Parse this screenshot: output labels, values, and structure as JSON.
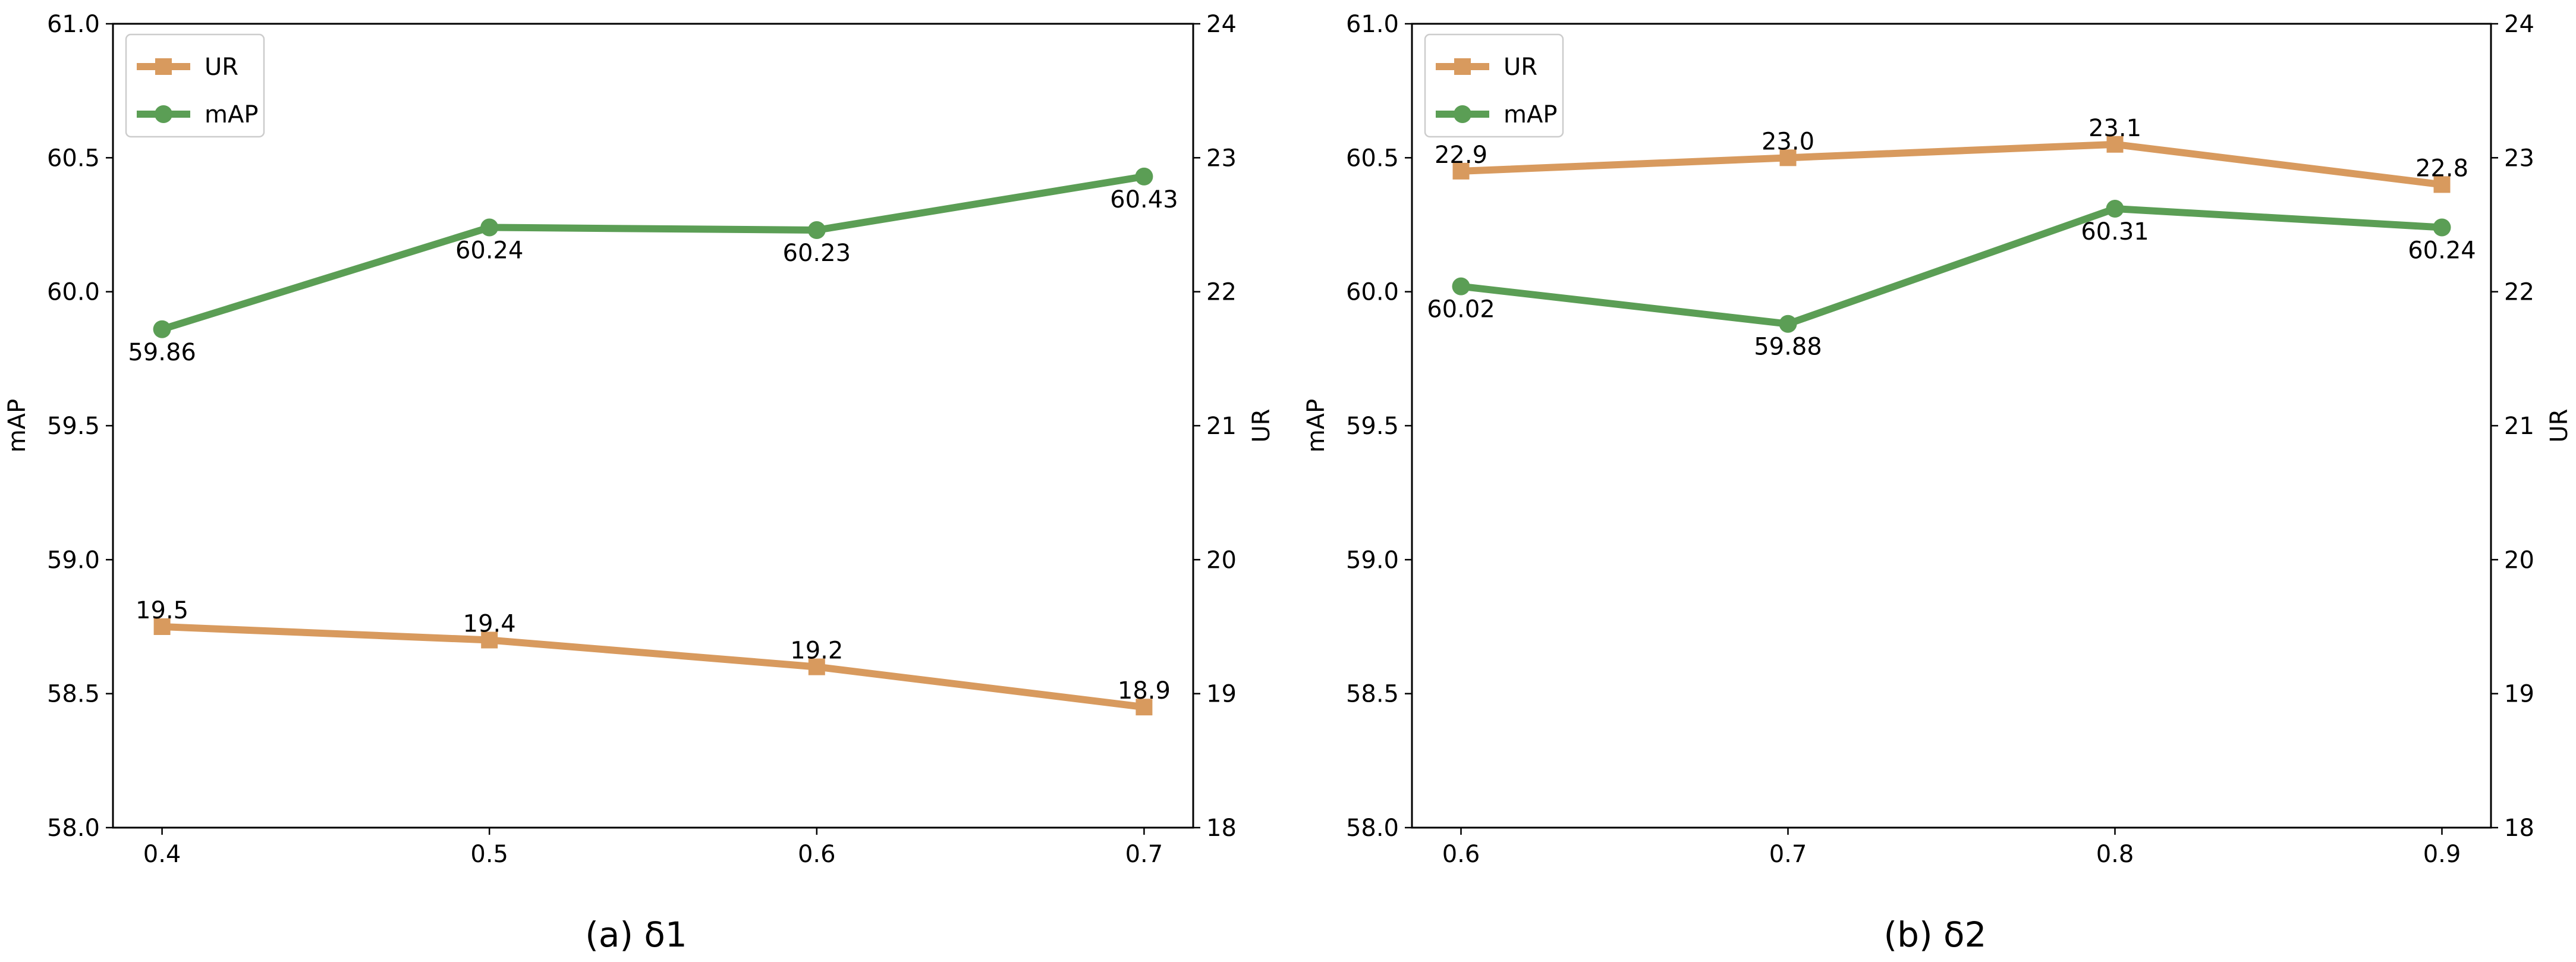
{
  "chart_data": [
    {
      "type": "line",
      "caption": "(a) δ1",
      "x": [
        0.4,
        0.5,
        0.6,
        0.7
      ],
      "xtick_labels": [
        "0.4",
        "0.5",
        "0.6",
        "0.7"
      ],
      "xlim": [
        0.385,
        0.715
      ],
      "ylabel_left": "mAP",
      "ylabel_right": "UR",
      "ylim_left": [
        58.0,
        61.0
      ],
      "ylim_right": [
        18,
        24
      ],
      "yticks_left": [
        "58.0",
        "58.5",
        "59.0",
        "59.5",
        "60.0",
        "60.5",
        "61.0"
      ],
      "yticks_right": [
        "18",
        "19",
        "20",
        "21",
        "22",
        "23",
        "24"
      ],
      "legend_position": "top-left",
      "series": [
        {
          "name": "UR",
          "axis": "right",
          "marker": "square",
          "color": "#d89a5e",
          "values": [
            19.5,
            19.4,
            19.2,
            18.9
          ],
          "labels": [
            "19.5",
            "19.4",
            "19.2",
            "18.9"
          ],
          "label_side": "above"
        },
        {
          "name": "mAP",
          "axis": "left",
          "marker": "circle",
          "color": "#5b9e55",
          "values": [
            59.86,
            60.24,
            60.23,
            60.43
          ],
          "labels": [
            "59.86",
            "60.24",
            "60.23",
            "60.43"
          ],
          "label_side": "below"
        }
      ]
    },
    {
      "type": "line",
      "caption": "(b) δ2",
      "x": [
        0.6,
        0.7,
        0.8,
        0.9
      ],
      "xtick_labels": [
        "0.6",
        "0.7",
        "0.8",
        "0.9"
      ],
      "xlim": [
        0.585,
        0.915
      ],
      "ylabel_left": "mAP",
      "ylabel_right": "UR",
      "ylim_left": [
        58.0,
        61.0
      ],
      "ylim_right": [
        18,
        24
      ],
      "yticks_left": [
        "58.0",
        "58.5",
        "59.0",
        "59.5",
        "60.0",
        "60.5",
        "61.0"
      ],
      "yticks_right": [
        "18",
        "19",
        "20",
        "21",
        "22",
        "23",
        "24"
      ],
      "legend_position": "top-left",
      "series": [
        {
          "name": "UR",
          "axis": "right",
          "marker": "square",
          "color": "#d89a5e",
          "values": [
            22.9,
            23.0,
            23.1,
            22.8
          ],
          "labels": [
            "22.9",
            "23.0",
            "23.1",
            "22.8"
          ],
          "label_side": "above"
        },
        {
          "name": "mAP",
          "axis": "left",
          "marker": "circle",
          "color": "#5b9e55",
          "values": [
            60.02,
            59.88,
            60.31,
            60.24
          ],
          "labels": [
            "60.02",
            "59.88",
            "60.31",
            "60.24"
          ],
          "label_side": "below"
        }
      ]
    }
  ]
}
